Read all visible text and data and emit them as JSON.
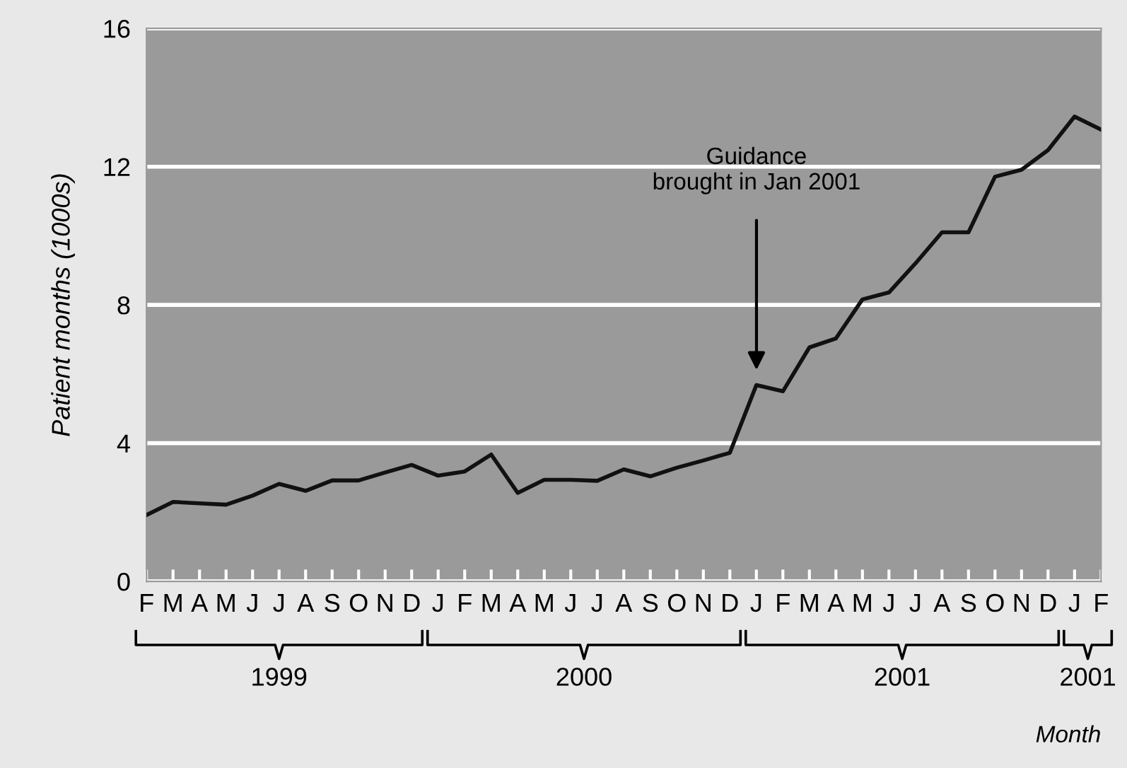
{
  "chart_data": {
    "type": "line",
    "xlabel": "Month",
    "ylabel": "Patient months (1000s)",
    "categories": [
      "F",
      "M",
      "A",
      "M",
      "J",
      "J",
      "A",
      "S",
      "O",
      "N",
      "D",
      "J",
      "F",
      "M",
      "A",
      "M",
      "J",
      "J",
      "A",
      "S",
      "O",
      "N",
      "D",
      "J",
      "F",
      "M",
      "A",
      "M",
      "J",
      "J",
      "A",
      "S",
      "O",
      "N",
      "D",
      "J",
      "F"
    ],
    "series": [
      {
        "color": "#111111",
        "values": [
          1.92,
          2.3,
          2.26,
          2.22,
          2.48,
          2.82,
          2.62,
          2.92,
          2.92,
          3.15,
          3.37,
          3.06,
          3.18,
          3.67,
          2.56,
          2.94,
          2.94,
          2.91,
          3.24,
          3.04,
          3.29,
          3.5,
          3.72,
          5.68,
          5.5,
          6.77,
          7.03,
          8.16,
          8.36,
          9.2,
          10.1,
          10.1,
          11.71,
          11.91,
          12.48,
          13.45,
          13.07
        ]
      }
    ],
    "ylim": [
      0,
      16
    ],
    "yticks": [
      0,
      4,
      8,
      12,
      16
    ],
    "grid": "y",
    "marker": "none",
    "line_style": "solid",
    "annotations": [
      "Guidance\nbrought in Jan 2001",
      "1999",
      "2000",
      "2001",
      "2001"
    ]
  }
}
